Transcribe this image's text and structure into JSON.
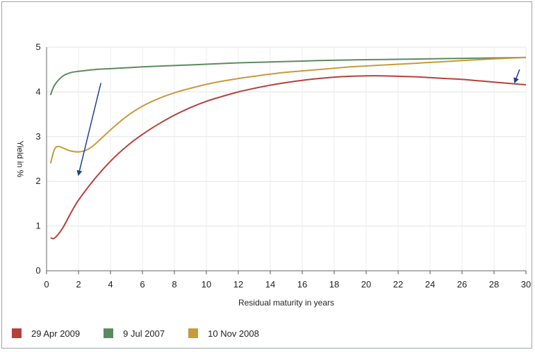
{
  "chart_data": {
    "type": "line",
    "xlabel": "Residual maturity in years",
    "ylabel": "Yield in %",
    "xlim": [
      0,
      30
    ],
    "ylim": [
      0,
      5
    ],
    "xticks": [
      "0",
      "2",
      "4",
      "6",
      "8",
      "10",
      "12",
      "14",
      "16",
      "18",
      "20",
      "22",
      "24",
      "26",
      "28",
      "30"
    ],
    "yticks": [
      "0",
      "1",
      "2",
      "3",
      "4",
      "5"
    ],
    "grid": true,
    "legend_position": "bottom",
    "series": [
      {
        "name": "29 Apr 2009",
        "color": "#b5403a",
        "x": [
          0.25,
          0.5,
          1,
          1.5,
          2,
          3,
          4,
          5,
          6,
          7,
          8,
          9,
          10,
          11,
          12,
          13,
          14,
          15,
          16,
          17,
          18,
          19,
          20,
          21,
          22,
          23,
          24,
          25,
          26,
          27,
          28,
          29,
          30
        ],
        "y": [
          0.74,
          0.73,
          0.95,
          1.28,
          1.58,
          2.05,
          2.45,
          2.78,
          3.05,
          3.28,
          3.48,
          3.65,
          3.79,
          3.9,
          4.0,
          4.08,
          4.15,
          4.21,
          4.26,
          4.3,
          4.33,
          4.35,
          4.36,
          4.36,
          4.35,
          4.34,
          4.32,
          4.3,
          4.28,
          4.25,
          4.22,
          4.19,
          4.16
        ]
      },
      {
        "name": "9 Jul 2007",
        "color": "#5b8a5e",
        "x": [
          0.25,
          0.5,
          1,
          1.5,
          2,
          3,
          4,
          5,
          6,
          8,
          10,
          12,
          14,
          16,
          18,
          20,
          22,
          24,
          26,
          28,
          30
        ],
        "y": [
          3.93,
          4.15,
          4.35,
          4.43,
          4.46,
          4.5,
          4.52,
          4.54,
          4.56,
          4.59,
          4.62,
          4.65,
          4.67,
          4.69,
          4.71,
          4.72,
          4.73,
          4.74,
          4.75,
          4.76,
          4.77
        ]
      },
      {
        "name": "10 Nov 2008",
        "color": "#c79a3a",
        "x": [
          0.25,
          0.5,
          0.75,
          1,
          1.5,
          2,
          2.5,
          3,
          4,
          5,
          6,
          7,
          8,
          9,
          10,
          11,
          12,
          13,
          14,
          15,
          16,
          17,
          18,
          19,
          20,
          22,
          24,
          26,
          28,
          30
        ],
        "y": [
          2.4,
          2.72,
          2.78,
          2.75,
          2.68,
          2.66,
          2.7,
          2.82,
          3.15,
          3.45,
          3.68,
          3.85,
          3.98,
          4.08,
          4.17,
          4.24,
          4.3,
          4.35,
          4.4,
          4.44,
          4.47,
          4.5,
          4.53,
          4.56,
          4.58,
          4.62,
          4.66,
          4.7,
          4.74,
          4.77
        ]
      }
    ],
    "annotations": [
      {
        "type": "arrow",
        "from": [
          3.4,
          4.2
        ],
        "to": [
          2.0,
          2.15
        ],
        "color": "#1f3f8c"
      },
      {
        "type": "arrow",
        "from": [
          29.6,
          4.5
        ],
        "to": [
          29.3,
          4.22
        ],
        "color": "#1f3f8c"
      }
    ]
  }
}
